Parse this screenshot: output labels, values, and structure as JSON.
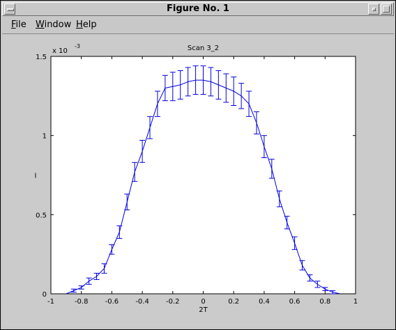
{
  "window": {
    "title": "Figure No. 1"
  },
  "menu": {
    "items": [
      "File",
      "Window",
      "Help"
    ]
  },
  "chart_data": {
    "type": "line",
    "title": "Scan 3_2",
    "xlabel": "2T",
    "ylabel": "I",
    "y_exponent": "x 10",
    "y_exponent_power": "-3",
    "xlim": [
      -1,
      1
    ],
    "ylim": [
      0,
      0.0015
    ],
    "xticks": [
      "-1",
      "-0.8",
      "-0.6",
      "-0.4",
      "-0.2",
      "0",
      "0.2",
      "0.4",
      "0.6",
      "0.8",
      "1"
    ],
    "yticks": [
      "0",
      "0.5",
      "1",
      "1.5"
    ],
    "line_color": "#0000e0",
    "x": [
      -0.9,
      -0.85,
      -0.8,
      -0.75,
      -0.7,
      -0.65,
      -0.6,
      -0.55,
      -0.5,
      -0.45,
      -0.4,
      -0.35,
      -0.3,
      -0.25,
      -0.2,
      -0.15,
      -0.1,
      -0.05,
      0.0,
      0.05,
      0.1,
      0.15,
      0.2,
      0.25,
      0.3,
      0.35,
      0.4,
      0.45,
      0.5,
      0.55,
      0.6,
      0.65,
      0.7,
      0.75,
      0.8,
      0.85,
      0.9
    ],
    "y": [
      0.0,
      2e-05,
      4e-05,
      8e-05,
      0.00011,
      0.00016,
      0.00028,
      0.00039,
      0.00058,
      0.00077,
      0.0009,
      0.00105,
      0.0012,
      0.0013,
      0.00131,
      0.00132,
      0.00134,
      0.00135,
      0.00135,
      0.00134,
      0.00132,
      0.0013,
      0.00128,
      0.00125,
      0.0012,
      0.00108,
      0.00093,
      0.00079,
      0.0006,
      0.00045,
      0.00032,
      0.00018,
      0.0001,
      6e-05,
      3e-05,
      1e-05,
      0.0
    ],
    "error": [
      0.0,
      1e-05,
      1e-05,
      2e-05,
      2e-05,
      3e-05,
      3e-05,
      4e-05,
      5e-05,
      6e-05,
      7e-05,
      7e-05,
      8e-05,
      8e-05,
      9e-05,
      9e-05,
      9e-05,
      9e-05,
      9e-05,
      9e-05,
      9e-05,
      9e-05,
      9e-05,
      8e-05,
      8e-05,
      7e-05,
      7e-05,
      6e-05,
      5e-05,
      4e-05,
      4e-05,
      3e-05,
      2e-05,
      2e-05,
      1e-05,
      1e-05,
      0.0
    ]
  }
}
